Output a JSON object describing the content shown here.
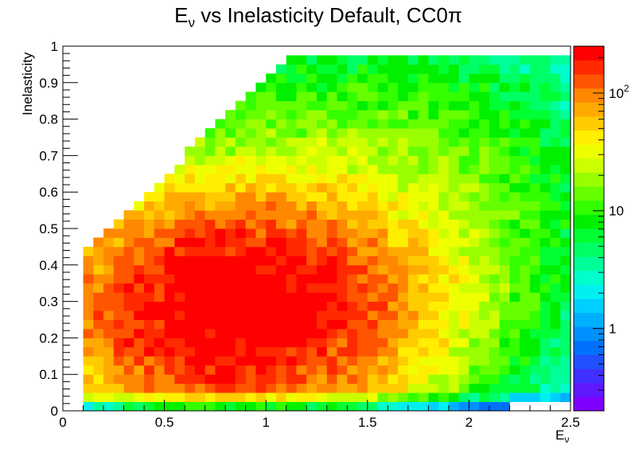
{
  "chart_data": {
    "type": "heatmap",
    "title": {
      "base": "E",
      "sub": "ν",
      "rest": " vs Inelasticity Default, CC0π"
    },
    "xlabel": {
      "base": "E",
      "sub": "ν"
    },
    "ylabel": "Inelasticity",
    "xlim": [
      0,
      2.5
    ],
    "ylim": [
      0,
      1
    ],
    "x_ticks": [
      {
        "value": 0,
        "label": "0"
      },
      {
        "value": 0.5,
        "label": "0.5"
      },
      {
        "value": 1,
        "label": "1"
      },
      {
        "value": 1.5,
        "label": "1.5"
      },
      {
        "value": 2,
        "label": "2"
      },
      {
        "value": 2.5,
        "label": "2.5"
      }
    ],
    "y_ticks": [
      {
        "value": 0,
        "label": "0"
      },
      {
        "value": 0.1,
        "label": "0.1"
      },
      {
        "value": 0.2,
        "label": "0.2"
      },
      {
        "value": 0.3,
        "label": "0.3"
      },
      {
        "value": 0.4,
        "label": "0.4"
      },
      {
        "value": 0.5,
        "label": "0.5"
      },
      {
        "value": 0.6,
        "label": "0.6"
      },
      {
        "value": 0.7,
        "label": "0.7"
      },
      {
        "value": 0.8,
        "label": "0.8"
      },
      {
        "value": 0.9,
        "label": "0.9"
      },
      {
        "value": 1,
        "label": "1"
      }
    ],
    "colorbar": {
      "scale": "log",
      "zlim": [
        0.2,
        250
      ],
      "ticks": [
        {
          "value": 1,
          "base": "1",
          "exp": ""
        },
        {
          "value": 10,
          "base": "10",
          "exp": ""
        },
        {
          "value": 100,
          "base": "10",
          "exp": "2"
        }
      ],
      "palette": [
        "#8000ff",
        "#6018ff",
        "#4030ff",
        "#2050ff",
        "#0070ff",
        "#0090ff",
        "#00b0ff",
        "#00d0ff",
        "#00f0f0",
        "#00ffcc",
        "#00ff99",
        "#00ff66",
        "#00ff33",
        "#00f000",
        "#33ff00",
        "#66ff00",
        "#99ff00",
        "#ccff00",
        "#eeff00",
        "#ffee00",
        "#ffcc00",
        "#ffaa00",
        "#ff8800",
        "#ff5500",
        "#ff2a00",
        "#ff0000"
      ]
    },
    "bins": {
      "nx": 50,
      "ny": 40,
      "note_counts_peak": "Peak density near E_nu ~ 0.8-1.0 and inelasticity ~ 0.2-0.35 (~250 counts); tails to ~1 count at high E_nu and inelasticity."
    }
  }
}
